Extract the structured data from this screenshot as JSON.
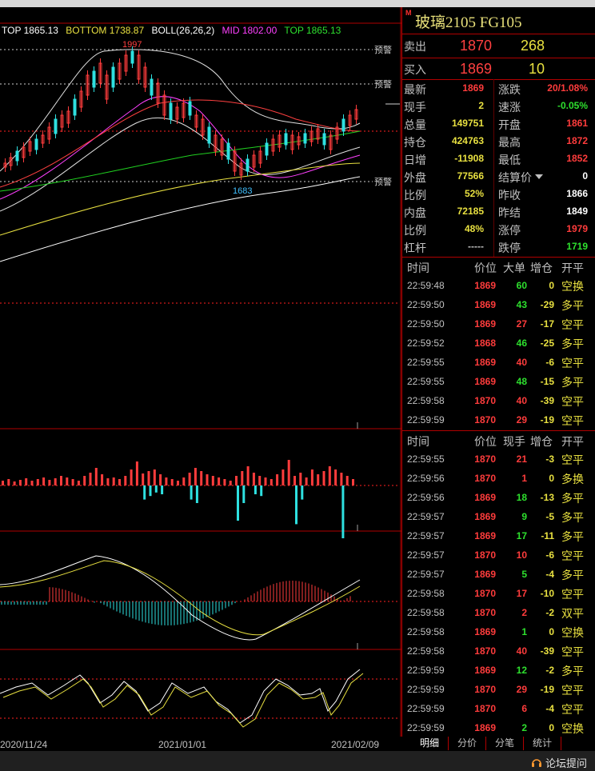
{
  "boll_header": {
    "top1": "TOP 1865.13",
    "bottom": "BOTTOM 1738.87",
    "boll": "BOLL(26,26,2)",
    "mid": "MID 1802.00",
    "top2": "TOP 1865.13"
  },
  "chart_labels": {
    "high_mark": "1997",
    "low_mark": "1683",
    "alert": "预警"
  },
  "dates": [
    "2020/11/24",
    "2021/01/01",
    "2021/02/09"
  ],
  "colors": {
    "up": "#ff3c3c",
    "down": "#2ee0e0",
    "boll_mid": "#ff60ff",
    "accent": "#b00000"
  },
  "panel": {
    "badge": "M",
    "title": "玻璃2105  FG105",
    "orderbook": {
      "sell": {
        "label": "卖出",
        "price": "1870",
        "volume": "268"
      },
      "buy": {
        "label": "买入",
        "price": "1869",
        "volume": "10"
      }
    },
    "quotes_left": [
      {
        "label": "最新",
        "value": "1869",
        "color": "red"
      },
      {
        "label": "现手",
        "value": "2",
        "color": "yellow"
      },
      {
        "label": "总量",
        "value": "149751",
        "color": "yellow"
      },
      {
        "label": "持仓",
        "value": "424763",
        "color": "yellow"
      },
      {
        "label": "日增",
        "value": "-11908",
        "color": "yellow"
      },
      {
        "label": "外盘",
        "value": "77566",
        "color": "yellow"
      },
      {
        "label": "比例",
        "value": "52%",
        "color": "yellow"
      },
      {
        "label": "内盘",
        "value": "72185",
        "color": "yellow"
      },
      {
        "label": "比例",
        "value": "48%",
        "color": "yellow"
      },
      {
        "label": "杠杆",
        "value": "-----",
        "color": "gray"
      }
    ],
    "quotes_right": [
      {
        "label": "涨跌",
        "value": "20/1.08%",
        "color": "red"
      },
      {
        "label": "速涨",
        "value": "-0.05%",
        "color": "green"
      },
      {
        "label": "开盘",
        "value": "1861",
        "color": "red"
      },
      {
        "label": "最高",
        "value": "1872",
        "color": "red"
      },
      {
        "label": "最低",
        "value": "1852",
        "color": "red"
      },
      {
        "label": "结算价",
        "value": "0",
        "color": "white"
      },
      {
        "label": "昨收",
        "value": "1866",
        "color": "white"
      },
      {
        "label": "昨结",
        "value": "1849",
        "color": "white"
      },
      {
        "label": "涨停",
        "value": "1979",
        "color": "red"
      },
      {
        "label": "跌停",
        "value": "1719",
        "color": "green"
      }
    ],
    "table1": {
      "headers": [
        "时间",
        "价位",
        "大单",
        "增仓",
        "开平"
      ],
      "rows": [
        {
          "time": "22:59:48",
          "price": "1869",
          "vol": "60",
          "oi": "0",
          "type": "空换",
          "pc": "red",
          "vc": "green",
          "tc": "yellow"
        },
        {
          "time": "22:59:50",
          "price": "1869",
          "vol": "43",
          "oi": "-29",
          "type": "多平",
          "pc": "red",
          "vc": "green",
          "tc": "yellow"
        },
        {
          "time": "22:59:50",
          "price": "1869",
          "vol": "27",
          "oi": "-17",
          "type": "空平",
          "pc": "red",
          "vc": "red",
          "tc": "yellow"
        },
        {
          "time": "22:59:52",
          "price": "1868",
          "vol": "46",
          "oi": "-25",
          "type": "多平",
          "pc": "red",
          "vc": "green",
          "tc": "yellow"
        },
        {
          "time": "22:59:55",
          "price": "1869",
          "vol": "40",
          "oi": "-6",
          "type": "空平",
          "pc": "red",
          "vc": "red",
          "tc": "yellow"
        },
        {
          "time": "22:59:55",
          "price": "1869",
          "vol": "48",
          "oi": "-15",
          "type": "多平",
          "pc": "red",
          "vc": "green",
          "tc": "yellow"
        },
        {
          "time": "22:59:58",
          "price": "1870",
          "vol": "40",
          "oi": "-39",
          "type": "空平",
          "pc": "red",
          "vc": "red",
          "tc": "yellow"
        },
        {
          "time": "22:59:59",
          "price": "1870",
          "vol": "29",
          "oi": "-19",
          "type": "空平",
          "pc": "red",
          "vc": "red",
          "tc": "yellow"
        }
      ]
    },
    "table2": {
      "headers": [
        "时间",
        "价位",
        "现手",
        "增仓",
        "开平"
      ],
      "rows": [
        {
          "time": "22:59:55",
          "price": "1870",
          "vol": "21",
          "oi": "-3",
          "type": "空平",
          "pc": "red",
          "vc": "red",
          "tc": "yellow"
        },
        {
          "time": "22:59:56",
          "price": "1870",
          "vol": "1",
          "oi": "0",
          "type": "多换",
          "pc": "red",
          "vc": "red",
          "tc": "yellow"
        },
        {
          "time": "22:59:56",
          "price": "1869",
          "vol": "18",
          "oi": "-13",
          "type": "多平",
          "pc": "red",
          "vc": "green",
          "tc": "yellow"
        },
        {
          "time": "22:59:57",
          "price": "1869",
          "vol": "9",
          "oi": "-5",
          "type": "多平",
          "pc": "red",
          "vc": "green",
          "tc": "yellow"
        },
        {
          "time": "22:59:57",
          "price": "1869",
          "vol": "17",
          "oi": "-11",
          "type": "多平",
          "pc": "red",
          "vc": "green",
          "tc": "yellow"
        },
        {
          "time": "22:59:57",
          "price": "1870",
          "vol": "10",
          "oi": "-6",
          "type": "空平",
          "pc": "red",
          "vc": "red",
          "tc": "yellow"
        },
        {
          "time": "22:59:57",
          "price": "1869",
          "vol": "5",
          "oi": "-4",
          "type": "多平",
          "pc": "red",
          "vc": "green",
          "tc": "yellow"
        },
        {
          "time": "22:59:58",
          "price": "1870",
          "vol": "17",
          "oi": "-10",
          "type": "空平",
          "pc": "red",
          "vc": "red",
          "tc": "yellow"
        },
        {
          "time": "22:59:58",
          "price": "1870",
          "vol": "2",
          "oi": "-2",
          "type": "双平",
          "pc": "red",
          "vc": "red",
          "tc": "yellow"
        },
        {
          "time": "22:59:58",
          "price": "1869",
          "vol": "1",
          "oi": "0",
          "type": "空换",
          "pc": "red",
          "vc": "green",
          "tc": "yellow"
        },
        {
          "time": "22:59:58",
          "price": "1870",
          "vol": "40",
          "oi": "-39",
          "type": "空平",
          "pc": "red",
          "vc": "red",
          "tc": "yellow"
        },
        {
          "time": "22:59:59",
          "price": "1869",
          "vol": "12",
          "oi": "-2",
          "type": "多平",
          "pc": "red",
          "vc": "green",
          "tc": "yellow"
        },
        {
          "time": "22:59:59",
          "price": "1870",
          "vol": "29",
          "oi": "-19",
          "type": "空平",
          "pc": "red",
          "vc": "red",
          "tc": "yellow"
        },
        {
          "time": "22:59:59",
          "price": "1870",
          "vol": "6",
          "oi": "-4",
          "type": "空平",
          "pc": "red",
          "vc": "red",
          "tc": "yellow"
        },
        {
          "time": "22:59:59",
          "price": "1869",
          "vol": "2",
          "oi": "0",
          "type": "空换",
          "pc": "red",
          "vc": "green",
          "tc": "yellow"
        }
      ]
    },
    "tabs": [
      "明细",
      "分价",
      "分笔",
      "统计"
    ]
  },
  "footer": {
    "forum_label": "论坛提问",
    "forum_icon": "headset-icon"
  }
}
